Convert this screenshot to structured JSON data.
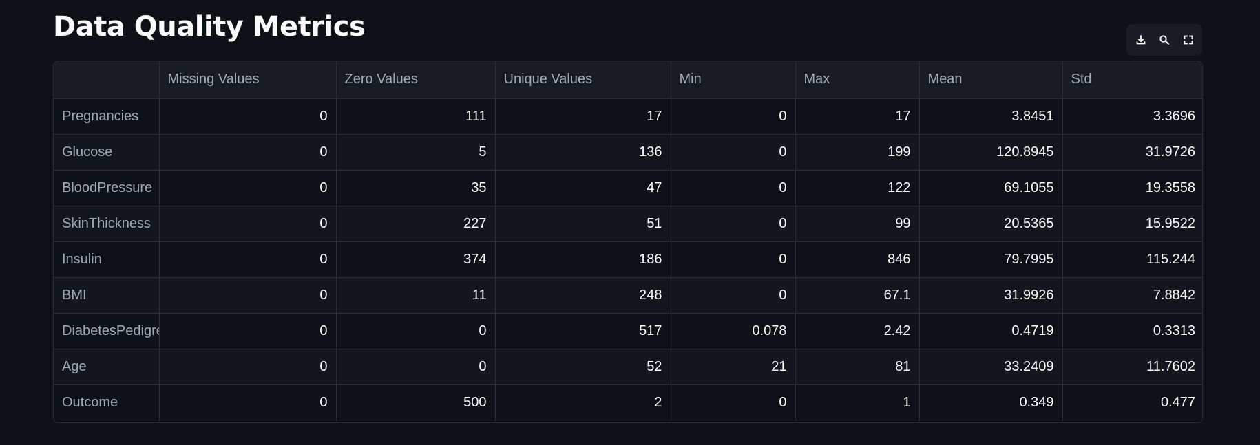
{
  "page": {
    "title": "Data Quality Metrics"
  },
  "toolbar": {
    "download_icon": "download-icon",
    "search_icon": "search-icon",
    "fullscreen_icon": "fullscreen-icon"
  },
  "table": {
    "columns": [
      "",
      "Missing Values",
      "Zero Values",
      "Unique Values",
      "Min",
      "Max",
      "Mean",
      "Std"
    ],
    "rows": [
      {
        "label": "Pregnancies",
        "values": [
          "0",
          "111",
          "17",
          "0",
          "17",
          "3.8451",
          "3.3696"
        ]
      },
      {
        "label": "Glucose",
        "values": [
          "0",
          "5",
          "136",
          "0",
          "199",
          "120.8945",
          "31.9726"
        ]
      },
      {
        "label": "BloodPressure",
        "values": [
          "0",
          "35",
          "47",
          "0",
          "122",
          "69.1055",
          "19.3558"
        ]
      },
      {
        "label": "SkinThickness",
        "values": [
          "0",
          "227",
          "51",
          "0",
          "99",
          "20.5365",
          "15.9522"
        ]
      },
      {
        "label": "Insulin",
        "values": [
          "0",
          "374",
          "186",
          "0",
          "846",
          "79.7995",
          "115.244"
        ]
      },
      {
        "label": "BMI",
        "values": [
          "0",
          "11",
          "248",
          "0",
          "67.1",
          "31.9926",
          "7.8842"
        ]
      },
      {
        "label": "DiabetesPedigre",
        "values": [
          "0",
          "0",
          "517",
          "0.078",
          "2.42",
          "0.4719",
          "0.3313"
        ]
      },
      {
        "label": "Age",
        "values": [
          "0",
          "0",
          "52",
          "21",
          "81",
          "33.2409",
          "11.7602"
        ]
      },
      {
        "label": "Outcome",
        "values": [
          "0",
          "500",
          "2",
          "0",
          "1",
          "0.349",
          "0.477"
        ]
      }
    ]
  },
  "colors": {
    "background": "#0e1117",
    "header_background": "#1a1c24",
    "border": "#2b2e38",
    "text": "#fafafa",
    "muted_text": "#a3a8b8"
  }
}
